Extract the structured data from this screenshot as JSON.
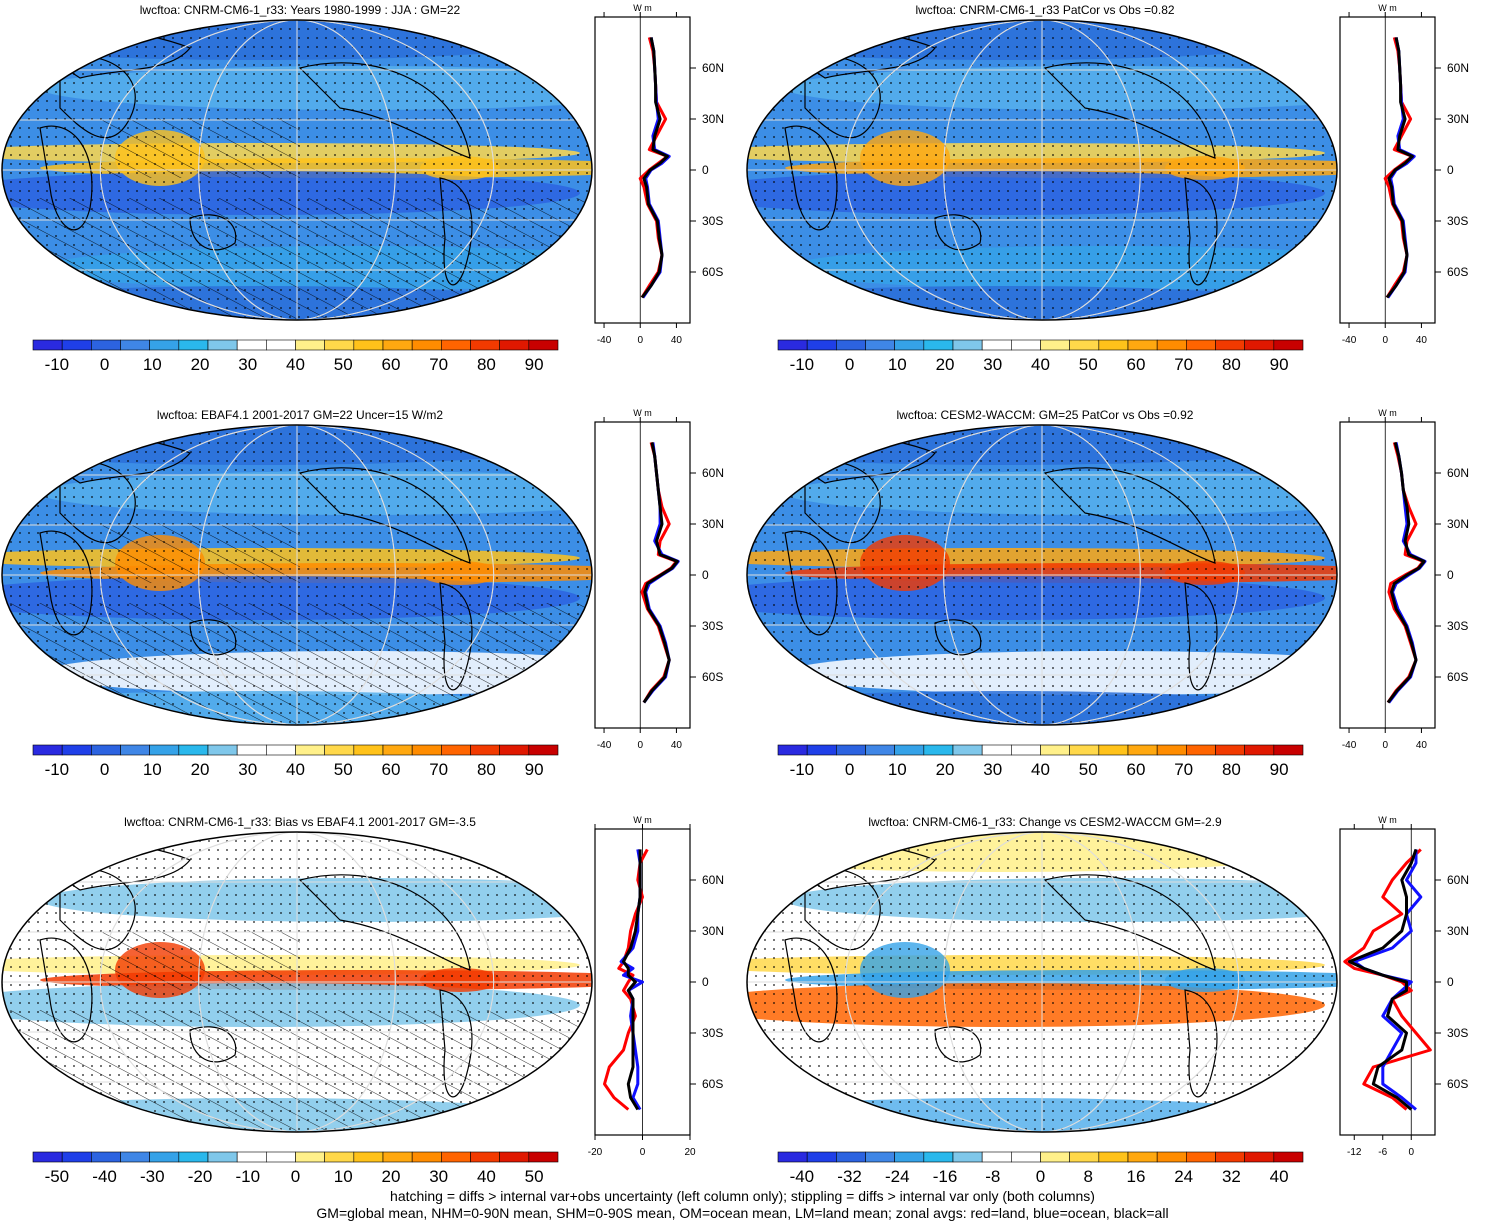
{
  "chart_data": [
    {
      "type": "heatmap",
      "title": "lwcftoa: CNRM-CM6-1_r33: Years 1980-1999 : JJA : GM=22",
      "colorbar_labels": [
        "-10",
        "0",
        "10",
        "20",
        "30",
        "40",
        "50",
        "60",
        "70",
        "80",
        "90"
      ],
      "colorbar_range": [
        -15,
        95
      ],
      "colors": [
        "#2a2ae0",
        "#1f3fe8",
        "#2c63e0",
        "#3f86e6",
        "#35a2e8",
        "#2ab8ec",
        "#7fc7ea",
        "#ffffff",
        "#ffffff",
        "#fff08a",
        "#ffd84a",
        "#ffc21a",
        "#ffa810",
        "#ff8c00",
        "#ff6400",
        "#f23a00",
        "#e01800",
        "#c80000"
      ],
      "profile": {
        "unit_label": "W m-2",
        "xticks": [
          "-40",
          "0",
          "40"
        ],
        "xlim": [
          -50,
          55
        ],
        "lat_ticks": [
          "60N",
          "30N",
          "0",
          "30S",
          "60S"
        ],
        "lats": [
          78,
          70,
          60,
          50,
          40,
          30,
          20,
          12,
          8,
          4,
          0,
          -5,
          -10,
          -20,
          -30,
          -40,
          -50,
          -60,
          -68,
          -75
        ],
        "land": [
          10,
          14,
          16,
          17,
          18,
          28,
          18,
          10,
          30,
          20,
          10,
          0,
          4,
          8,
          18,
          20,
          24,
          20,
          10,
          2
        ],
        "ocean": [
          12,
          15,
          16,
          17,
          18,
          20,
          14,
          16,
          32,
          24,
          12,
          6,
          8,
          10,
          20,
          22,
          24,
          22,
          12,
          3
        ],
        "all": [
          12,
          15,
          16,
          17,
          17,
          22,
          16,
          14,
          30,
          22,
          11,
          4,
          7,
          9,
          19,
          21,
          24,
          21,
          12,
          2
        ]
      }
    },
    {
      "type": "heatmap",
      "title": "lwcftoa: CNRM-CM6-1_r33 PatCor vs Obs =0.82",
      "colorbar_labels": [
        "-10",
        "0",
        "10",
        "20",
        "30",
        "40",
        "50",
        "60",
        "70",
        "80",
        "90"
      ],
      "colorbar_range": [
        -15,
        95
      ],
      "colors": [
        "#2a2ae0",
        "#1f3fe8",
        "#2c63e0",
        "#3f86e6",
        "#35a2e8",
        "#2ab8ec",
        "#7fc7ea",
        "#ffffff",
        "#ffffff",
        "#fff08a",
        "#ffd84a",
        "#ffc21a",
        "#ffa810",
        "#ff8c00",
        "#ff6400",
        "#f23a00",
        "#e01800",
        "#c80000"
      ],
      "profile": {
        "unit_label": "W m-2",
        "xticks": [
          "-40",
          "0",
          "40"
        ],
        "xlim": [
          -50,
          55
        ],
        "lat_ticks": [
          "60N",
          "30N",
          "0",
          "30S",
          "60S"
        ],
        "lats": [
          78,
          70,
          60,
          50,
          40,
          30,
          20,
          12,
          8,
          4,
          0,
          -5,
          -10,
          -20,
          -30,
          -40,
          -50,
          -60,
          -68,
          -75
        ],
        "land": [
          10,
          14,
          16,
          17,
          18,
          28,
          18,
          10,
          30,
          20,
          10,
          0,
          4,
          8,
          18,
          20,
          24,
          20,
          10,
          2
        ],
        "ocean": [
          12,
          15,
          16,
          17,
          18,
          20,
          14,
          16,
          32,
          24,
          12,
          6,
          8,
          10,
          20,
          22,
          24,
          22,
          12,
          3
        ],
        "all": [
          12,
          15,
          16,
          17,
          17,
          22,
          16,
          14,
          30,
          22,
          11,
          4,
          7,
          9,
          19,
          21,
          24,
          21,
          12,
          2
        ]
      }
    },
    {
      "type": "heatmap",
      "title": "lwcftoa: EBAF4.1 2001-2017 GM=22 Uncer=15 W/m2",
      "colorbar_labels": [
        "-10",
        "0",
        "10",
        "20",
        "30",
        "40",
        "50",
        "60",
        "70",
        "80",
        "90"
      ],
      "colorbar_range": [
        -15,
        95
      ],
      "colors": [
        "#2a2ae0",
        "#1f3fe8",
        "#2c63e0",
        "#3f86e6",
        "#35a2e8",
        "#2ab8ec",
        "#7fc7ea",
        "#ffffff",
        "#ffffff",
        "#fff08a",
        "#ffd84a",
        "#ffc21a",
        "#ffa810",
        "#ff8c00",
        "#ff6400",
        "#f23a00",
        "#e01800",
        "#c80000"
      ],
      "profile": {
        "unit_label": "W m-2",
        "xticks": [
          "-40",
          "0",
          "40"
        ],
        "xlim": [
          -50,
          55
        ],
        "lat_ticks": [
          "60N",
          "30N",
          "0",
          "30S",
          "60S"
        ],
        "lats": [
          78,
          70,
          60,
          50,
          40,
          30,
          20,
          12,
          8,
          4,
          0,
          -5,
          -10,
          -20,
          -30,
          -40,
          -50,
          -60,
          -68,
          -75
        ],
        "land": [
          12,
          16,
          18,
          20,
          24,
          32,
          22,
          20,
          40,
          34,
          22,
          6,
          2,
          8,
          20,
          26,
          32,
          26,
          12,
          4
        ],
        "ocean": [
          14,
          16,
          18,
          20,
          22,
          22,
          16,
          24,
          42,
          36,
          24,
          10,
          6,
          10,
          22,
          28,
          32,
          28,
          14,
          4
        ],
        "all": [
          13,
          16,
          18,
          20,
          22,
          24,
          18,
          22,
          41,
          35,
          23,
          8,
          5,
          9,
          21,
          27,
          32,
          27,
          13,
          4
        ]
      }
    },
    {
      "type": "heatmap",
      "title": "lwcftoa: CESM2-WACCM: GM=25 PatCor vs Obs =0.92",
      "colorbar_labels": [
        "-10",
        "0",
        "10",
        "20",
        "30",
        "40",
        "50",
        "60",
        "70",
        "80",
        "90"
      ],
      "colorbar_range": [
        -15,
        95
      ],
      "colors": [
        "#2a2ae0",
        "#1f3fe8",
        "#2c63e0",
        "#3f86e6",
        "#35a2e8",
        "#2ab8ec",
        "#7fc7ea",
        "#ffffff",
        "#ffffff",
        "#fff08a",
        "#ffd84a",
        "#ffc21a",
        "#ffa810",
        "#ff8c00",
        "#ff6400",
        "#f23a00",
        "#e01800",
        "#c80000"
      ],
      "profile": {
        "unit_label": "W m-2",
        "xticks": [
          "-40",
          "0",
          "40"
        ],
        "xlim": [
          -50,
          55
        ],
        "lat_ticks": [
          "60N",
          "30N",
          "0",
          "30S",
          "60S"
        ],
        "lats": [
          78,
          70,
          60,
          50,
          40,
          30,
          20,
          12,
          8,
          4,
          0,
          -5,
          -10,
          -20,
          -30,
          -40,
          -50,
          -60,
          -68,
          -75
        ],
        "land": [
          10,
          14,
          18,
          20,
          26,
          34,
          24,
          22,
          42,
          36,
          22,
          6,
          4,
          10,
          22,
          28,
          34,
          26,
          12,
          3
        ],
        "ocean": [
          12,
          15,
          18,
          20,
          22,
          24,
          20,
          28,
          44,
          38,
          26,
          12,
          8,
          14,
          24,
          30,
          34,
          28,
          14,
          4
        ],
        "all": [
          11,
          15,
          18,
          20,
          24,
          26,
          22,
          26,
          43,
          37,
          24,
          10,
          7,
          12,
          23,
          29,
          34,
          27,
          13,
          3
        ]
      }
    },
    {
      "type": "heatmap",
      "title": "lwcftoa: CNRM-CM6-1_r33: Bias vs EBAF4.1 2001-2017 GM=-3.5",
      "colorbar_labels": [
        "-50",
        "-40",
        "-30",
        "-20",
        "-10",
        "0",
        "10",
        "20",
        "30",
        "40",
        "50"
      ],
      "colorbar_range": [
        -55,
        55
      ],
      "colors": [
        "#2a2ae0",
        "#1f3fe8",
        "#2c63e0",
        "#3f86e6",
        "#35a2e8",
        "#2ab8ec",
        "#7fc7ea",
        "#ffffff",
        "#ffffff",
        "#fff08a",
        "#ffd84a",
        "#ffc21a",
        "#ffa810",
        "#ff8c00",
        "#ff6400",
        "#f23a00",
        "#e01800",
        "#c80000"
      ],
      "profile": {
        "unit_label": "W m-2",
        "xticks": [
          "-20",
          "0",
          "20"
        ],
        "xlim": [
          -20,
          20
        ],
        "lat_ticks": [
          "60N",
          "30N",
          "0",
          "30S",
          "60S"
        ],
        "lats": [
          78,
          70,
          60,
          50,
          40,
          30,
          20,
          12,
          8,
          4,
          0,
          -5,
          -10,
          -20,
          -30,
          -40,
          -50,
          -60,
          -68,
          -75
        ],
        "land": [
          2,
          -1,
          -2,
          0,
          -3,
          -5,
          -6,
          -8,
          -10,
          -4,
          -6,
          -8,
          -5,
          -3,
          -6,
          -8,
          -14,
          -16,
          -12,
          -6
        ],
        "ocean": [
          -2,
          -1,
          -1,
          -1,
          -2,
          -2,
          -4,
          -9,
          -4,
          -8,
          0,
          -6,
          -4,
          -5,
          -4,
          -3,
          -2,
          -2,
          -4,
          -1
        ],
        "all": [
          -1,
          -1,
          -1,
          -1,
          -2,
          -3,
          -5,
          -8,
          -6,
          -6,
          -3,
          -6,
          -4,
          -4,
          -4,
          -4,
          -4,
          -6,
          -5,
          -2
        ]
      }
    },
    {
      "type": "heatmap",
      "title": "lwcftoa: CNRM-CM6-1_r33: Change vs CESM2-WACCM GM=-2.9",
      "colorbar_labels": [
        "-40",
        "-32",
        "-24",
        "-16",
        "-8",
        "0",
        "8",
        "16",
        "24",
        "32",
        "40"
      ],
      "colorbar_range": [
        -44,
        44
      ],
      "colors": [
        "#2a2ae0",
        "#1f3fe8",
        "#2c63e0",
        "#3f86e6",
        "#35a2e8",
        "#2ab8ec",
        "#7fc7ea",
        "#ffffff",
        "#ffffff",
        "#fff08a",
        "#ffd84a",
        "#ffc21a",
        "#ffa810",
        "#ff8c00",
        "#ff6400",
        "#f23a00",
        "#e01800",
        "#c80000"
      ],
      "profile": {
        "unit_label": "W m-2",
        "xticks": [
          "-12",
          "-6",
          "0"
        ],
        "xlim": [
          -15,
          5
        ],
        "lat_ticks": [
          "60N",
          "30N",
          "0",
          "30S",
          "60S"
        ],
        "lats": [
          78,
          70,
          60,
          50,
          40,
          30,
          20,
          12,
          8,
          4,
          0,
          -5,
          -10,
          -20,
          -30,
          -40,
          -50,
          -60,
          -68,
          -75
        ],
        "land": [
          2,
          -1,
          -4,
          -6,
          -2,
          -8,
          -10,
          -14,
          -12,
          -6,
          -2,
          0,
          -4,
          -2,
          1,
          4,
          -8,
          -10,
          -4,
          -1
        ],
        "ocean": [
          1,
          1,
          -1,
          2,
          -1,
          0,
          -4,
          -12,
          -10,
          -6,
          0,
          -2,
          -4,
          -6,
          -2,
          -4,
          -6,
          -6,
          -2,
          1
        ],
        "all": [
          1,
          0,
          -2,
          -1,
          -1,
          -2,
          -6,
          -13,
          -10,
          -6,
          -1,
          -1,
          -4,
          -5,
          -1,
          -2,
          -7,
          -8,
          -3,
          0
        ]
      }
    }
  ],
  "footer": {
    "line1": "hatching = diffs > internal var+obs uncertainty (left column only); stippling = diffs > internal var only (both columns)",
    "line2": "GM=global mean, NHM=0-90N mean, SHM=0-90S mean, OM=ocean mean, LM=land mean; zonal avgs: red=land, blue=ocean, black=all"
  }
}
